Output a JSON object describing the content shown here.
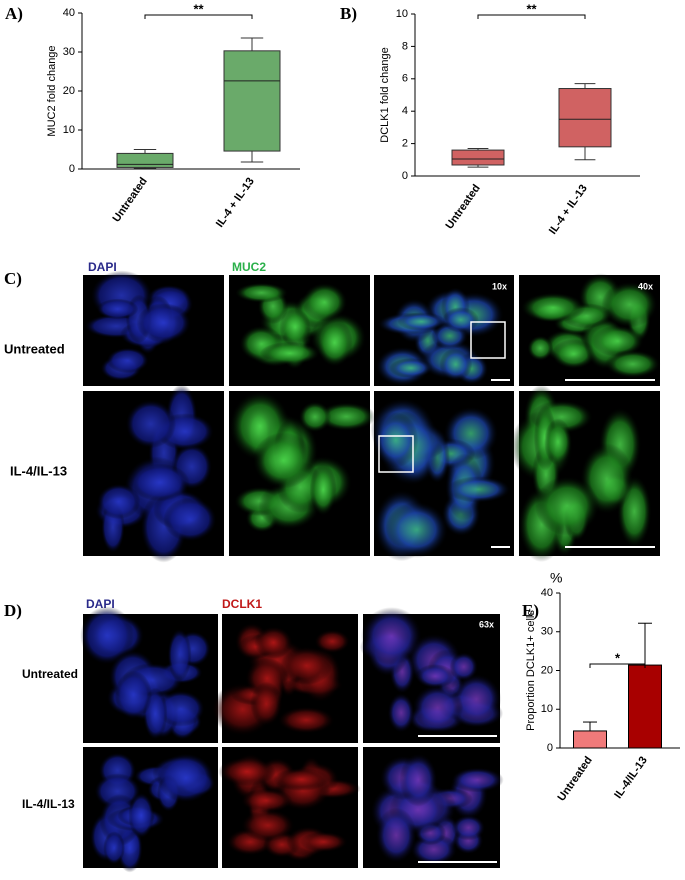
{
  "chart_data": [
    {
      "type": "box",
      "panel_label": "A)",
      "ylabel": "MUC2 fold change",
      "categories": [
        "Untreated",
        "IL-4 + IL-13"
      ],
      "boxes": [
        {
          "min": 0.2,
          "q1": 0.4,
          "median": 1.2,
          "q3": 4.0,
          "max": 5.0
        },
        {
          "min": 1.8,
          "q1": 4.6,
          "median": 22.6,
          "q3": 30.3,
          "max": 33.6
        }
      ],
      "color": "#6aaa6a",
      "ylim": [
        0,
        40
      ],
      "yticks": [
        0,
        10,
        20,
        30,
        40
      ],
      "annotation": "**"
    },
    {
      "type": "box",
      "panel_label": "B)",
      "ylabel": "DCLK1 fold change",
      "categories": [
        "Untreated",
        "IL-4 + IL-13"
      ],
      "boxes": [
        {
          "min": 0.55,
          "q1": 0.68,
          "median": 1.05,
          "q3": 1.6,
          "max": 1.7
        },
        {
          "min": 1.0,
          "q1": 1.8,
          "median": 3.5,
          "q3": 5.4,
          "max": 5.7
        }
      ],
      "color": "#d06262",
      "ylim": [
        0,
        10
      ],
      "yticks": [
        0,
        2,
        4,
        6,
        8,
        10
      ],
      "annotation": "**"
    },
    {
      "type": "bar",
      "panel_label": "E)",
      "ylabel": "Proportion DCLK1+ cells",
      "y_unit": "%",
      "categories": [
        "Untreated",
        "IL-4/IL-13"
      ],
      "values": [
        4.4,
        21.4
      ],
      "errors": [
        2.3,
        10.8
      ],
      "colors": [
        "#f07a7a",
        "#a80000"
      ],
      "ylim": [
        0,
        40
      ],
      "yticks": [
        0,
        10,
        20,
        30,
        40
      ],
      "annotation": "*"
    }
  ],
  "panel_c": {
    "label": "C)",
    "headings": [
      "DAPI",
      "MUC2"
    ],
    "rows": [
      "Untreated",
      "IL-4/IL-13"
    ],
    "magnifications": [
      "10x",
      "40x"
    ]
  },
  "panel_d": {
    "label": "D)",
    "headings": [
      "DAPI",
      "DCLK1"
    ],
    "rows": [
      "Untreated",
      "IL-4/IL-13"
    ],
    "magnification": "63x"
  }
}
